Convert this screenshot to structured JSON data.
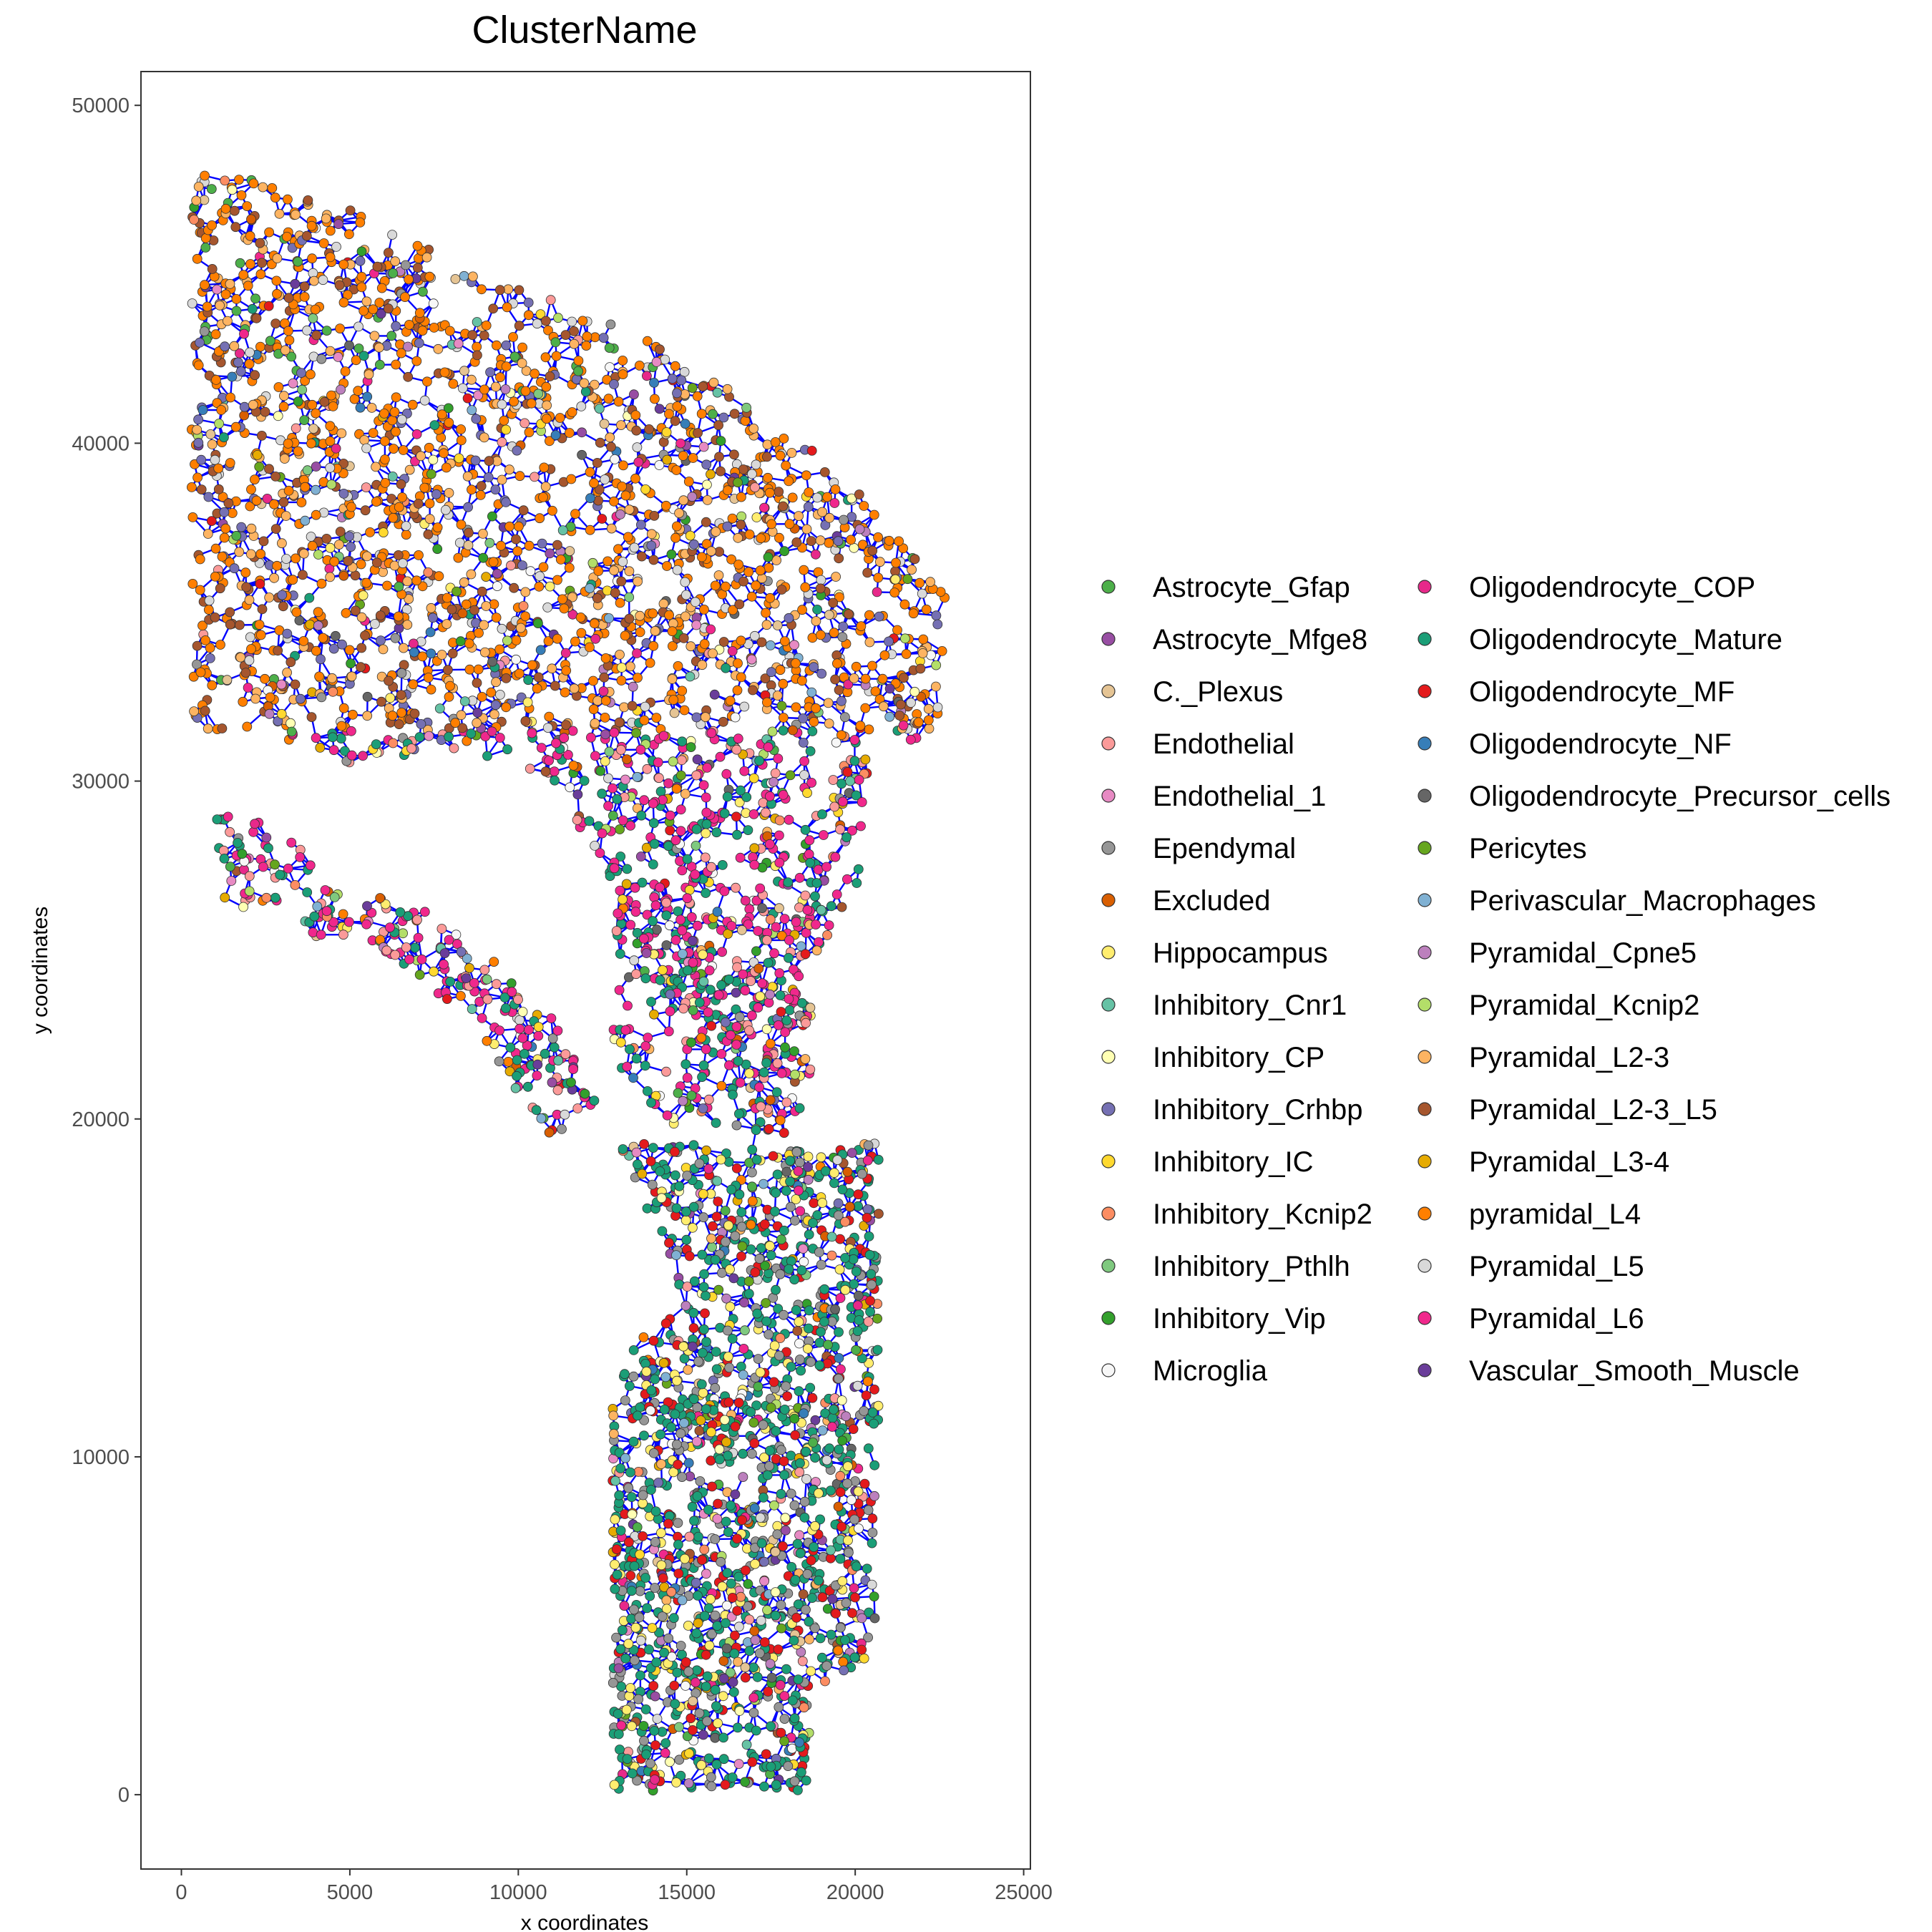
{
  "chart_data": {
    "type": "scatter",
    "title": "ClusterName",
    "xlabel": "x coordinates",
    "ylabel": "y coordinates",
    "xlim": [
      -1200,
      25200
    ],
    "ylim": [
      -2200,
      51000
    ],
    "x_ticks": [
      0,
      5000,
      10000,
      15000,
      20000,
      25000
    ],
    "y_ticks": [
      0,
      10000,
      20000,
      30000,
      40000,
      50000
    ],
    "x_tick_labels": [
      "0",
      "5000",
      "10000",
      "15000",
      "20000",
      "25000"
    ],
    "y_tick_labels": [
      "0",
      "10000",
      "20000",
      "30000",
      "40000",
      "50000"
    ],
    "grid": false,
    "network_edges_color": "#0000ff",
    "legend_position": "right",
    "legend_columns": 2,
    "series": [
      {
        "name": "Astrocyte_Gfap",
        "color": "#4daf4a"
      },
      {
        "name": "Astrocyte_Mfge8",
        "color": "#984ea3"
      },
      {
        "name": "C._Plexus",
        "color": "#e5c494"
      },
      {
        "name": "Endothelial",
        "color": "#fb9a99"
      },
      {
        "name": "Endothelial_1",
        "color": "#e78ac3"
      },
      {
        "name": "Ependymal",
        "color": "#969696"
      },
      {
        "name": "Excluded",
        "color": "#d95f02"
      },
      {
        "name": "Hippocampus",
        "color": "#ffed6f"
      },
      {
        "name": "Inhibitory_Cnr1",
        "color": "#66c2a5"
      },
      {
        "name": "Inhibitory_CP",
        "color": "#ffffb3"
      },
      {
        "name": "Inhibitory_Crhbp",
        "color": "#7570b3"
      },
      {
        "name": "Inhibitory_IC",
        "color": "#ffd92f"
      },
      {
        "name": "Inhibitory_Kcnip2",
        "color": "#fc8d62"
      },
      {
        "name": "Inhibitory_Pthlh",
        "color": "#7fc97f"
      },
      {
        "name": "Inhibitory_Vip",
        "color": "#33a02c"
      },
      {
        "name": "Microglia",
        "color": "#f7f7f7"
      },
      {
        "name": "Oligodendrocyte_COP",
        "color": "#e7298a"
      },
      {
        "name": "Oligodendrocyte_Mature",
        "color": "#1b9e77"
      },
      {
        "name": "Oligodendrocyte_MF",
        "color": "#e41a1c"
      },
      {
        "name": "Oligodendrocyte_NF",
        "color": "#377eb8"
      },
      {
        "name": "Oligodendrocyte_Precursor_cells",
        "color": "#666666"
      },
      {
        "name": "Pericytes",
        "color": "#66a61e"
      },
      {
        "name": "Perivascular_Macrophages",
        "color": "#80b1d3"
      },
      {
        "name": "Pyramidal_Cpne5",
        "color": "#bc80bd"
      },
      {
        "name": "Pyramidal_Kcnip2",
        "color": "#b3de69"
      },
      {
        "name": "Pyramidal_L2-3",
        "color": "#fdb462"
      },
      {
        "name": "Pyramidal_L2-3_L5",
        "color": "#a6562e"
      },
      {
        "name": "Pyramidal_L3-4",
        "color": "#e6ab02"
      },
      {
        "name": "pyramidal_L4",
        "color": "#ff7f00"
      },
      {
        "name": "Pyramidal_L5",
        "color": "#d9d9d9"
      },
      {
        "name": "Pyramidal_L6",
        "color": "#f0288c"
      },
      {
        "name": "Vascular_Smooth_Muscle",
        "color": "#6a3d9a"
      }
    ]
  }
}
